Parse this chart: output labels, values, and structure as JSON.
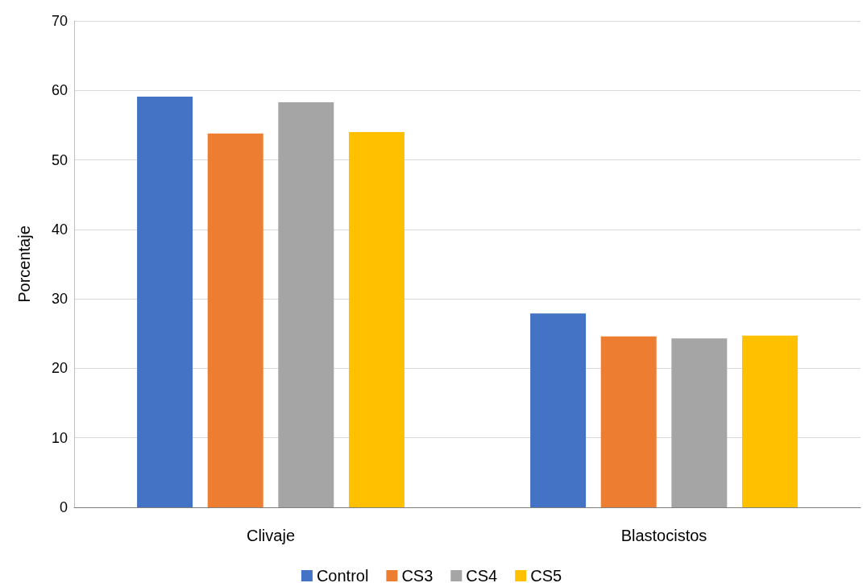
{
  "chart_data": {
    "type": "bar",
    "ylabel": "Porcentaje",
    "categories": [
      "Clivaje",
      "Blastocistos"
    ],
    "series": [
      {
        "name": "Control",
        "color": "#4472c4",
        "values": [
          59.1,
          27.9
        ]
      },
      {
        "name": "CS3",
        "color": "#ed7d31",
        "values": [
          53.8,
          24.6
        ]
      },
      {
        "name": "CS4",
        "color": "#a5a5a5",
        "values": [
          58.3,
          24.3
        ]
      },
      {
        "name": "CS5",
        "color": "#ffc000",
        "values": [
          54.0,
          24.7
        ]
      }
    ],
    "ylim": [
      0,
      70
    ],
    "yticks": [
      0,
      10,
      20,
      30,
      40,
      50,
      60,
      70
    ],
    "grid": "y",
    "legend": "bottom"
  }
}
